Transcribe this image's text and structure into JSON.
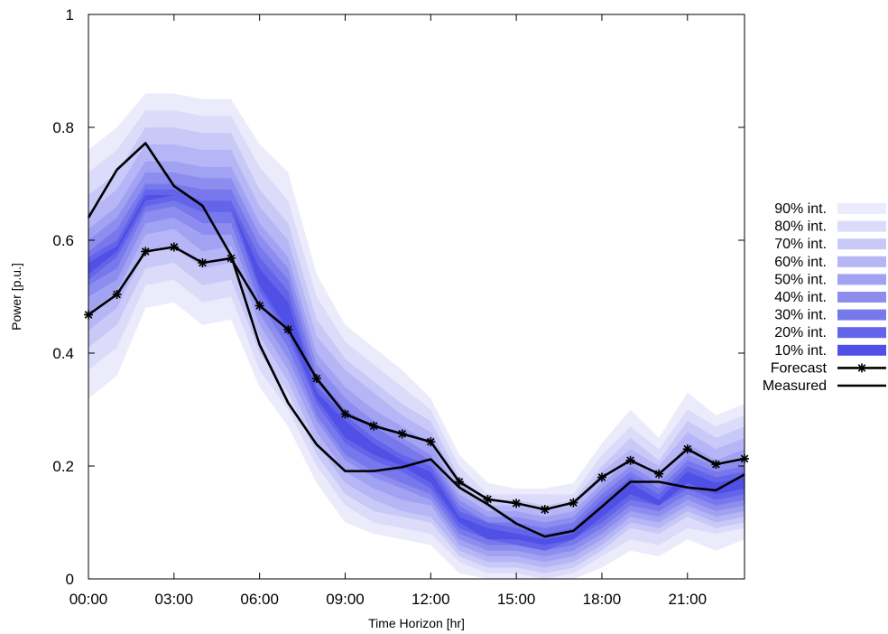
{
  "chart_data": {
    "type": "area",
    "xlabel": "Time Horizon [hr]",
    "ylabel": "Power [p.u.]",
    "xlim": [
      0,
      23
    ],
    "ylim": [
      0,
      1
    ],
    "x": [
      0,
      1,
      2,
      3,
      4,
      5,
      6,
      7,
      8,
      9,
      10,
      11,
      12,
      13,
      14,
      15,
      16,
      17,
      18,
      19,
      20,
      21,
      22,
      23
    ],
    "x_ticks": [
      0,
      3,
      6,
      9,
      12,
      15,
      18,
      21
    ],
    "x_tick_labels": [
      "00:00",
      "03:00",
      "06:00",
      "09:00",
      "12:00",
      "15:00",
      "18:00",
      "21:00"
    ],
    "y_ticks": [
      0,
      0.2,
      0.4,
      0.6,
      0.8,
      1
    ],
    "y_tick_labels": [
      "0",
      "0.2",
      "0.4",
      "0.6",
      "0.8",
      "1"
    ],
    "bands": [
      {
        "name": "90% int.",
        "color": "#ebebfb",
        "lower": [
          0.32,
          0.36,
          0.48,
          0.49,
          0.45,
          0.46,
          0.34,
          0.27,
          0.17,
          0.1,
          0.08,
          0.07,
          0.06,
          0.01,
          0.0,
          0.0,
          0.0,
          0.0,
          0.02,
          0.05,
          0.04,
          0.07,
          0.05,
          0.07
        ],
        "upper": [
          0.76,
          0.8,
          0.86,
          0.86,
          0.85,
          0.85,
          0.77,
          0.72,
          0.54,
          0.45,
          0.41,
          0.37,
          0.32,
          0.22,
          0.17,
          0.16,
          0.16,
          0.17,
          0.24,
          0.3,
          0.25,
          0.33,
          0.29,
          0.31
        ]
      },
      {
        "name": "80% int.",
        "color": "#dcdcfa",
        "lower": [
          0.37,
          0.41,
          0.52,
          0.53,
          0.49,
          0.5,
          0.37,
          0.3,
          0.2,
          0.13,
          0.1,
          0.09,
          0.08,
          0.03,
          0.01,
          0.01,
          0.0,
          0.01,
          0.04,
          0.07,
          0.06,
          0.09,
          0.08,
          0.09
        ],
        "upper": [
          0.72,
          0.76,
          0.83,
          0.83,
          0.82,
          0.82,
          0.73,
          0.67,
          0.5,
          0.42,
          0.38,
          0.34,
          0.3,
          0.2,
          0.15,
          0.15,
          0.15,
          0.15,
          0.22,
          0.27,
          0.23,
          0.3,
          0.27,
          0.29
        ]
      },
      {
        "name": "70% int.",
        "color": "#c9c9f8",
        "lower": [
          0.41,
          0.45,
          0.55,
          0.56,
          0.52,
          0.53,
          0.4,
          0.33,
          0.22,
          0.15,
          0.12,
          0.11,
          0.1,
          0.04,
          0.02,
          0.02,
          0.01,
          0.02,
          0.05,
          0.09,
          0.08,
          0.11,
          0.09,
          0.1
        ],
        "upper": [
          0.68,
          0.72,
          0.8,
          0.8,
          0.79,
          0.79,
          0.69,
          0.63,
          0.46,
          0.39,
          0.35,
          0.31,
          0.28,
          0.18,
          0.14,
          0.14,
          0.13,
          0.14,
          0.2,
          0.25,
          0.21,
          0.28,
          0.25,
          0.27
        ]
      },
      {
        "name": "60% int.",
        "color": "#b6b6f6",
        "lower": [
          0.44,
          0.48,
          0.58,
          0.59,
          0.55,
          0.56,
          0.43,
          0.35,
          0.24,
          0.17,
          0.14,
          0.12,
          0.11,
          0.05,
          0.03,
          0.03,
          0.02,
          0.03,
          0.06,
          0.1,
          0.09,
          0.12,
          0.1,
          0.11
        ],
        "upper": [
          0.65,
          0.69,
          0.77,
          0.77,
          0.76,
          0.76,
          0.66,
          0.6,
          0.43,
          0.37,
          0.33,
          0.29,
          0.26,
          0.17,
          0.13,
          0.13,
          0.12,
          0.13,
          0.19,
          0.23,
          0.2,
          0.26,
          0.23,
          0.25
        ]
      },
      {
        "name": "50% int.",
        "color": "#a2a2f3",
        "lower": [
          0.47,
          0.51,
          0.61,
          0.62,
          0.58,
          0.59,
          0.45,
          0.37,
          0.26,
          0.19,
          0.16,
          0.14,
          0.13,
          0.06,
          0.04,
          0.04,
          0.03,
          0.04,
          0.07,
          0.11,
          0.1,
          0.13,
          0.11,
          0.12
        ],
        "upper": [
          0.62,
          0.66,
          0.74,
          0.74,
          0.73,
          0.73,
          0.63,
          0.57,
          0.4,
          0.34,
          0.3,
          0.27,
          0.24,
          0.15,
          0.12,
          0.12,
          0.11,
          0.12,
          0.17,
          0.21,
          0.18,
          0.24,
          0.21,
          0.23
        ]
      },
      {
        "name": "40% int.",
        "color": "#8d8df0",
        "lower": [
          0.5,
          0.53,
          0.63,
          0.64,
          0.61,
          0.61,
          0.47,
          0.39,
          0.28,
          0.21,
          0.18,
          0.16,
          0.14,
          0.07,
          0.05,
          0.05,
          0.04,
          0.05,
          0.08,
          0.12,
          0.11,
          0.14,
          0.12,
          0.13
        ],
        "upper": [
          0.6,
          0.64,
          0.72,
          0.72,
          0.71,
          0.71,
          0.61,
          0.55,
          0.38,
          0.32,
          0.28,
          0.25,
          0.22,
          0.14,
          0.11,
          0.11,
          0.1,
          0.11,
          0.16,
          0.2,
          0.17,
          0.22,
          0.2,
          0.21
        ]
      },
      {
        "name": "30% int.",
        "color": "#7878ed",
        "lower": [
          0.52,
          0.55,
          0.65,
          0.66,
          0.63,
          0.63,
          0.49,
          0.41,
          0.29,
          0.22,
          0.19,
          0.17,
          0.15,
          0.08,
          0.06,
          0.06,
          0.05,
          0.06,
          0.09,
          0.13,
          0.12,
          0.15,
          0.13,
          0.14
        ],
        "upper": [
          0.58,
          0.62,
          0.7,
          0.7,
          0.69,
          0.69,
          0.59,
          0.53,
          0.36,
          0.3,
          0.27,
          0.24,
          0.21,
          0.13,
          0.1,
          0.1,
          0.09,
          0.1,
          0.15,
          0.19,
          0.16,
          0.21,
          0.19,
          0.2
        ]
      },
      {
        "name": "20% int.",
        "color": "#6464ea",
        "lower": [
          0.53,
          0.57,
          0.66,
          0.67,
          0.65,
          0.65,
          0.51,
          0.43,
          0.31,
          0.24,
          0.21,
          0.19,
          0.16,
          0.09,
          0.07,
          0.06,
          0.05,
          0.07,
          0.1,
          0.14,
          0.13,
          0.16,
          0.14,
          0.15
        ],
        "upper": [
          0.57,
          0.6,
          0.69,
          0.69,
          0.67,
          0.67,
          0.57,
          0.51,
          0.34,
          0.29,
          0.25,
          0.22,
          0.2,
          0.12,
          0.1,
          0.09,
          0.08,
          0.09,
          0.14,
          0.18,
          0.15,
          0.2,
          0.18,
          0.19
        ]
      },
      {
        "name": "10% int.",
        "color": "#5050e6",
        "lower": [
          0.54,
          0.58,
          0.67,
          0.68,
          0.66,
          0.66,
          0.52,
          0.44,
          0.32,
          0.25,
          0.22,
          0.2,
          0.17,
          0.1,
          0.07,
          0.07,
          0.06,
          0.07,
          0.11,
          0.15,
          0.13,
          0.17,
          0.15,
          0.16
        ],
        "upper": [
          0.56,
          0.59,
          0.68,
          0.68,
          0.66,
          0.66,
          0.55,
          0.49,
          0.33,
          0.28,
          0.24,
          0.21,
          0.19,
          0.11,
          0.09,
          0.08,
          0.07,
          0.08,
          0.13,
          0.17,
          0.14,
          0.19,
          0.17,
          0.18
        ]
      }
    ],
    "series": [
      {
        "name": "Forecast",
        "color": "#000000",
        "marker": "asterisk",
        "values": [
          0.468,
          0.504,
          0.58,
          0.588,
          0.56,
          0.568,
          0.484,
          0.442,
          0.355,
          0.292,
          0.271,
          0.257,
          0.243,
          0.172,
          0.141,
          0.134,
          0.123,
          0.135,
          0.18,
          0.21,
          0.186,
          0.23,
          0.203,
          0.213
        ]
      },
      {
        "name": "Measured",
        "color": "#000000",
        "marker": "none",
        "values": [
          0.64,
          0.725,
          0.772,
          0.696,
          0.661,
          0.573,
          0.415,
          0.312,
          0.238,
          0.191,
          0.191,
          0.198,
          0.212,
          0.162,
          0.132,
          0.098,
          0.075,
          0.085,
          0.128,
          0.172,
          0.172,
          0.162,
          0.157,
          0.185
        ]
      }
    ],
    "legend": {
      "position": "right",
      "entries": [
        "90% int.",
        "80% int.",
        "70% int.",
        "60% int.",
        "50% int.",
        "40% int.",
        "30% int.",
        "20% int.",
        "10% int.",
        "Forecast",
        "Measured"
      ]
    }
  }
}
